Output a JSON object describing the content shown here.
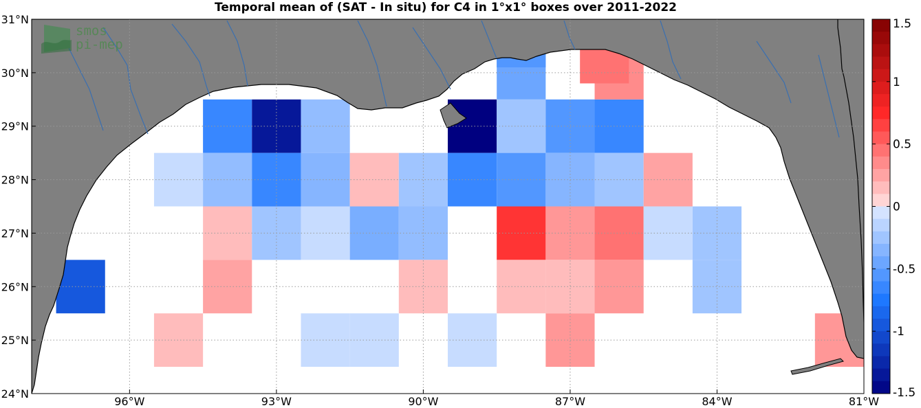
{
  "title": "Temporal mean of (SAT - In situ) for C4 in 1°x1° boxes over 2011-2022",
  "logo": {
    "line1": "smos",
    "line2": "pi-mep"
  },
  "map": {
    "lon_range": [
      -98.0,
      -81.0
    ],
    "lat_range": [
      24.0,
      31.0
    ],
    "x_ticks": [
      {
        "lon": -96,
        "label": "96°W"
      },
      {
        "lon": -93,
        "label": "93°W"
      },
      {
        "lon": -90,
        "label": "90°W"
      },
      {
        "lon": -87,
        "label": "87°W"
      },
      {
        "lon": -84,
        "label": "84°W"
      },
      {
        "lon": -81,
        "label": "81°W"
      }
    ],
    "y_ticks": [
      {
        "lat": 24,
        "label": "24°N"
      },
      {
        "lat": 25,
        "label": "25°N"
      },
      {
        "lat": 26,
        "label": "26°N"
      },
      {
        "lat": 27,
        "label": "27°N"
      },
      {
        "lat": 28,
        "label": "28°N"
      },
      {
        "lat": 29,
        "label": "29°N"
      },
      {
        "lat": 30,
        "label": "30°N"
      },
      {
        "lat": 31,
        "label": "31°N"
      }
    ],
    "grid": true,
    "colors": {
      "land": "#808080",
      "ocean": "#ffffff",
      "rivers": "#3a6fb0",
      "coast": "#000000"
    }
  },
  "chart_data": {
    "type": "heatmap",
    "title": "Temporal mean of (SAT - In situ) for C4 in 1°x1° boxes over 2011-2022",
    "cell_size_deg": 1,
    "value_range": [
      -1.5,
      1.5
    ],
    "cells": [
      {
        "lon": -94,
        "lat": 29,
        "value": -0.65
      },
      {
        "lon": -93,
        "lat": 29,
        "value": -1.35
      },
      {
        "lon": -92,
        "lat": 29,
        "value": -0.3
      },
      {
        "lon": -89,
        "lat": 29,
        "value": -1.5
      },
      {
        "lon": -88,
        "lat": 29,
        "value": -0.25
      },
      {
        "lon": -87,
        "lat": 29,
        "value": -0.55
      },
      {
        "lon": -86,
        "lat": 29,
        "value": -0.65
      },
      {
        "lon": -88,
        "lat": 30,
        "value": -0.45
      },
      {
        "lon": -86,
        "lat": 30,
        "value": 0.35
      },
      {
        "lon": -88,
        "lat": 30.6,
        "value": -0.55
      },
      {
        "lon": -86.3,
        "lat": 30.3,
        "value": 0.45
      },
      {
        "lon": -95,
        "lat": 28,
        "value": -0.1
      },
      {
        "lon": -94,
        "lat": 28,
        "value": -0.3
      },
      {
        "lon": -93,
        "lat": 28,
        "value": -0.65
      },
      {
        "lon": -92,
        "lat": 28,
        "value": -0.35
      },
      {
        "lon": -91,
        "lat": 28,
        "value": 0.15
      },
      {
        "lon": -90,
        "lat": 28,
        "value": -0.25
      },
      {
        "lon": -89,
        "lat": 28,
        "value": -0.65
      },
      {
        "lon": -88,
        "lat": 28,
        "value": -0.55
      },
      {
        "lon": -87,
        "lat": 28,
        "value": -0.35
      },
      {
        "lon": -86,
        "lat": 28,
        "value": -0.25
      },
      {
        "lon": -85,
        "lat": 28,
        "value": 0.25
      },
      {
        "lon": -94,
        "lat": 27,
        "value": 0.15
      },
      {
        "lon": -93,
        "lat": 27,
        "value": -0.25
      },
      {
        "lon": -92,
        "lat": 27,
        "value": -0.1
      },
      {
        "lon": -91,
        "lat": 27,
        "value": -0.4
      },
      {
        "lon": -90,
        "lat": 27,
        "value": -0.3
      },
      {
        "lon": -88,
        "lat": 27,
        "value": 0.7
      },
      {
        "lon": -87,
        "lat": 27,
        "value": 0.3
      },
      {
        "lon": -86,
        "lat": 27,
        "value": 0.45
      },
      {
        "lon": -85,
        "lat": 27,
        "value": -0.1
      },
      {
        "lon": -84,
        "lat": 27,
        "value": -0.25
      },
      {
        "lon": -97,
        "lat": 26,
        "value": -0.95
      },
      {
        "lon": -94,
        "lat": 26,
        "value": 0.25
      },
      {
        "lon": -90,
        "lat": 26,
        "value": 0.15
      },
      {
        "lon": -88,
        "lat": 26,
        "value": 0.15
      },
      {
        "lon": -87,
        "lat": 26,
        "value": 0.15
      },
      {
        "lon": -86,
        "lat": 26,
        "value": 0.3
      },
      {
        "lon": -84,
        "lat": 26,
        "value": -0.25
      },
      {
        "lon": -95,
        "lat": 25,
        "value": 0.15
      },
      {
        "lon": -92,
        "lat": 25,
        "value": -0.1
      },
      {
        "lon": -91,
        "lat": 25,
        "value": -0.1
      },
      {
        "lon": -89,
        "lat": 25,
        "value": -0.1
      },
      {
        "lon": -87,
        "lat": 25,
        "value": 0.3
      },
      {
        "lon": -81.5,
        "lat": 25,
        "value": 0.3
      }
    ],
    "colorbar": {
      "ticks": [
        {
          "value": 1.5,
          "label": "1.5"
        },
        {
          "value": 1,
          "label": "1"
        },
        {
          "value": 0.5,
          "label": "0.5"
        },
        {
          "value": 0,
          "label": "0"
        },
        {
          "value": -0.5,
          "label": "-0.5"
        },
        {
          "value": -1,
          "label": "-1"
        },
        {
          "value": -1.5,
          "label": "-1.5"
        }
      ],
      "steps": 30
    }
  }
}
